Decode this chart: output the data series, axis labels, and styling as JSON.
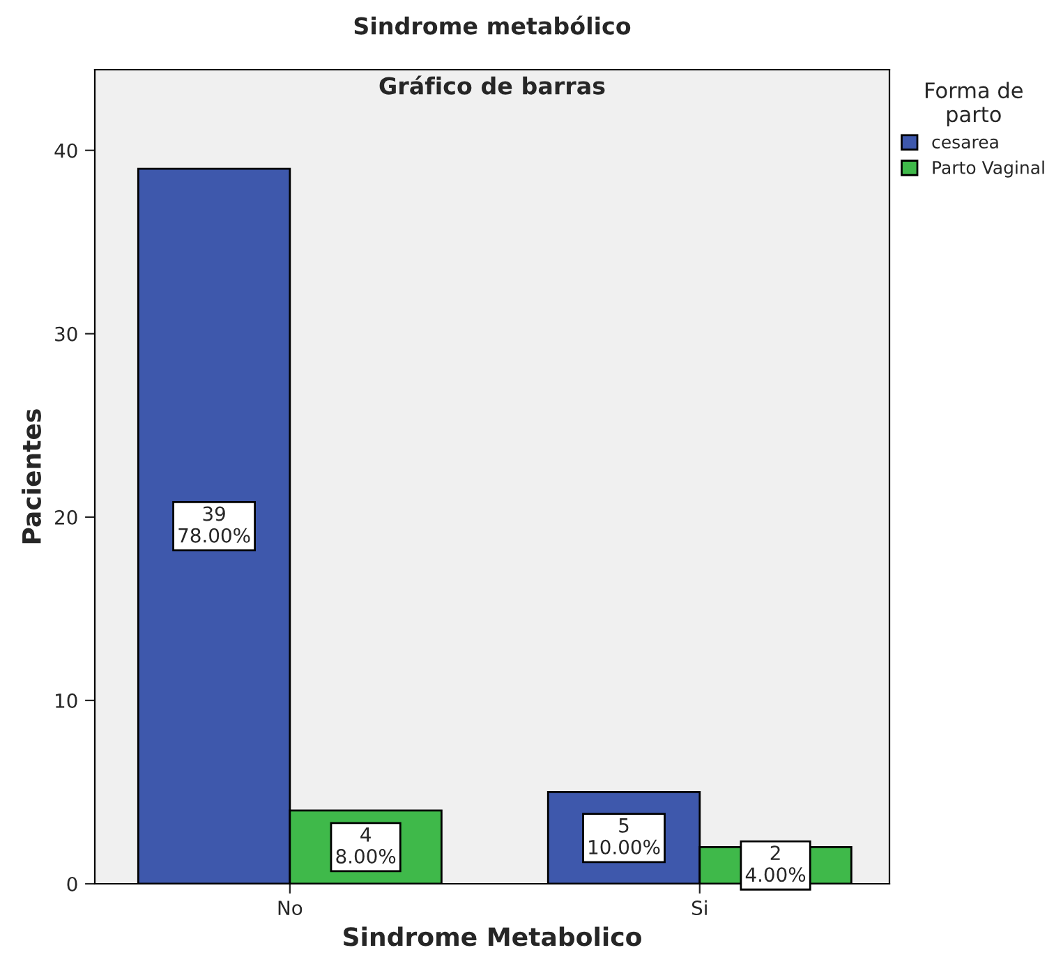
{
  "chart_data": {
    "type": "bar",
    "title": "Sindrome metabólico",
    "subtitle": "Gráfico de barras",
    "xlabel": "Sindrome Metabolico",
    "ylabel": "Pacientes",
    "legend_title": "Forma de\nparto",
    "categories": [
      "No",
      "Si"
    ],
    "series": [
      {
        "name": "cesarea",
        "color": "#3e58ac",
        "values": [
          39,
          5
        ],
        "value_labels": [
          "39\n78.00%",
          "5\n10.00%"
        ]
      },
      {
        "name": "Parto Vaginal",
        "color": "#3fb94a",
        "values": [
          4,
          2
        ],
        "value_labels": [
          "4\n8.00%",
          "2\n4.00%"
        ]
      }
    ],
    "ylim": [
      0,
      44.4
    ],
    "yticks": [
      0,
      10,
      20,
      30,
      40
    ],
    "grid": false,
    "legend": "top right"
  }
}
